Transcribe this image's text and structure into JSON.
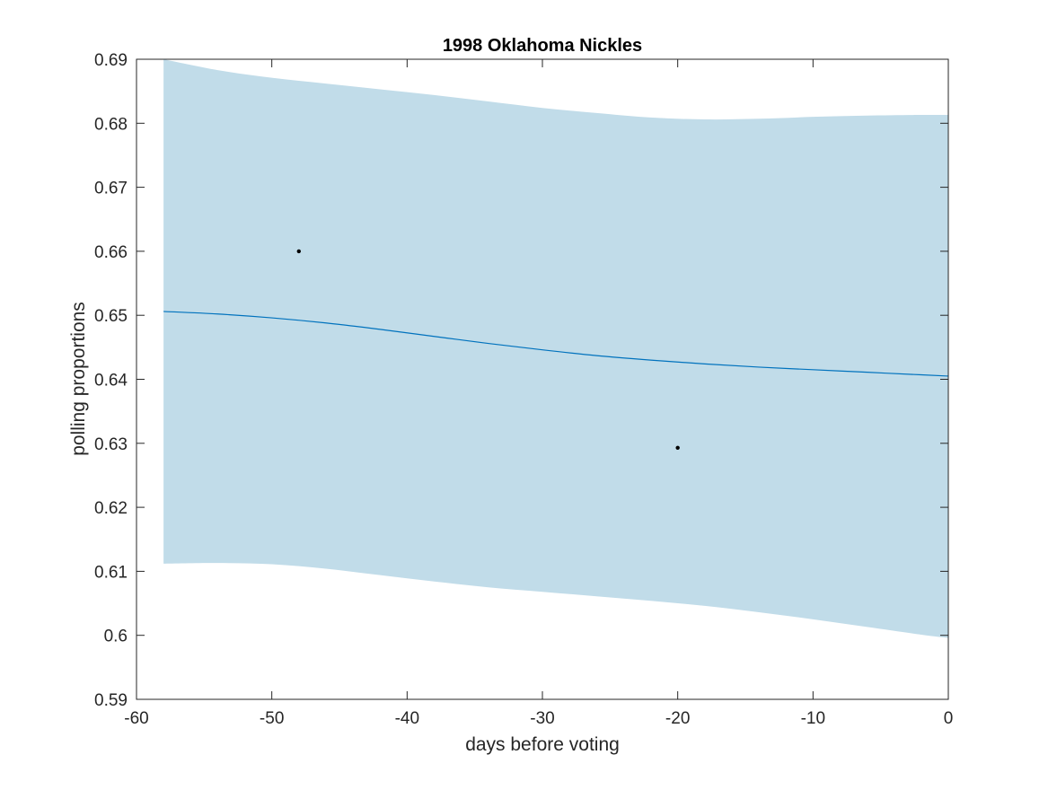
{
  "chart_data": {
    "type": "line",
    "title": "1998 Oklahoma Nickles",
    "xlabel": "days before voting",
    "ylabel": "polling proportions",
    "xlim": [
      -60,
      0
    ],
    "ylim": [
      0.59,
      0.69
    ],
    "x_ticks": [
      "-60",
      "-50",
      "-40",
      "-30",
      "-20",
      "-10",
      "0"
    ],
    "y_ticks": [
      "0.59",
      "0.6",
      "0.61",
      "0.62",
      "0.63",
      "0.64",
      "0.65",
      "0.66",
      "0.67",
      "0.68",
      "0.69"
    ],
    "grid": false,
    "trend": {
      "x": [
        -58,
        -54,
        -50,
        -46,
        -42,
        -38,
        -34,
        -30,
        -26,
        -22,
        -18,
        -14,
        -10,
        -6,
        -2,
        0
      ],
      "y": [
        0.6506,
        0.6502,
        0.6496,
        0.6488,
        0.6478,
        0.6467,
        0.6456,
        0.6446,
        0.6437,
        0.643,
        0.6424,
        0.6419,
        0.6415,
        0.6411,
        0.6407,
        0.6405
      ],
      "color": "#0072bd"
    },
    "band": {
      "x": [
        -58,
        -54,
        -50,
        -46,
        -42,
        -38,
        -34,
        -30,
        -26,
        -22,
        -18,
        -14,
        -10,
        -6,
        -2,
        0
      ],
      "upper": [
        0.69,
        0.6883,
        0.6871,
        0.6862,
        0.6853,
        0.6844,
        0.6834,
        0.6824,
        0.6816,
        0.6809,
        0.6806,
        0.6807,
        0.681,
        0.6812,
        0.6813,
        0.6813
      ],
      "lower": [
        0.6112,
        0.6113,
        0.6111,
        0.6104,
        0.6094,
        0.6084,
        0.6075,
        0.6068,
        0.6061,
        0.6054,
        0.6046,
        0.6036,
        0.6025,
        0.6013,
        0.6001,
        0.5996
      ],
      "color": "#c1dce9"
    },
    "points": {
      "x": [
        -48,
        -20
      ],
      "y": [
        0.66,
        0.6293
      ],
      "color": "#000000"
    }
  }
}
